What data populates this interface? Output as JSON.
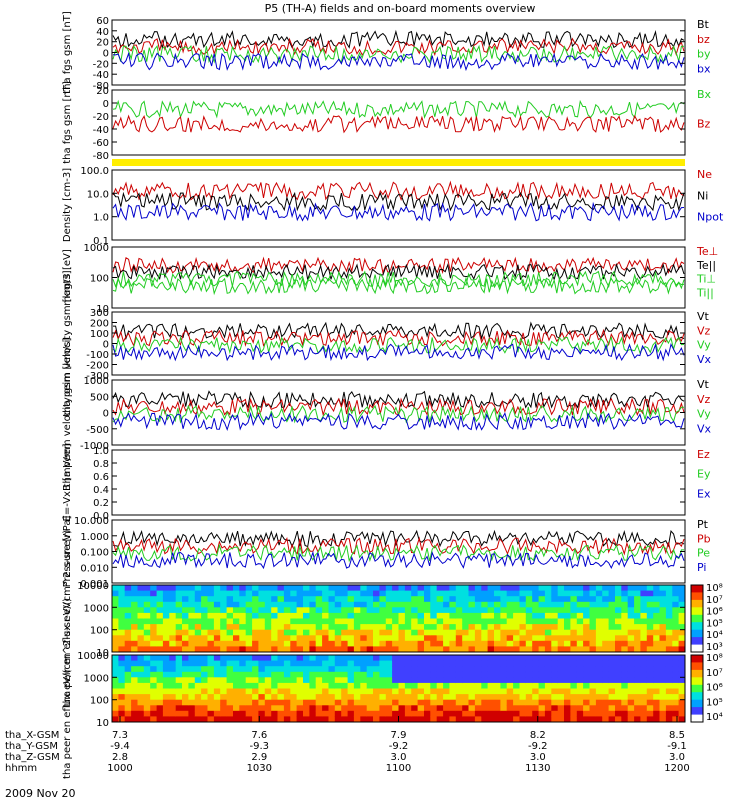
{
  "title": "P5 (TH-A) fields and on-board moments overview",
  "date_label": "2009 Nov 20",
  "colors": {
    "black": "#000000",
    "red": "#cc0000",
    "green": "#22cc22",
    "blue": "#0000cc",
    "yellow": "#ffee00"
  },
  "chart_data": [
    {
      "type": "line",
      "ylabel": "tha fgs gsm [nT]",
      "ylim": [
        -80,
        60
      ],
      "ticks": [
        "60",
        "40",
        "20",
        "0",
        "-20",
        "-40",
        "-80"
      ],
      "legend": [
        {
          "name": "Bt",
          "color": "black"
        },
        {
          "name": "bz",
          "color": "red"
        },
        {
          "name": "by",
          "color": "green"
        },
        {
          "name": "bx",
          "color": "blue"
        }
      ]
    },
    {
      "type": "line",
      "ylabel": "tha fgs gsm [nT]",
      "ylim": [
        -90,
        20
      ],
      "ticks": [
        "20",
        "0",
        "-20",
        "-40",
        "-60",
        "-80"
      ],
      "legend": [
        {
          "name": "Bx",
          "color": "green"
        },
        {
          "name": "Bz",
          "color": "red"
        }
      ]
    },
    {
      "type": "line",
      "ylabel": "Density [cm-3]",
      "scale": "log",
      "ticks": [
        "100.0",
        "10.0",
        "1.0",
        "0.1"
      ],
      "legend": [
        {
          "name": "Ne",
          "color": "red"
        },
        {
          "name": "Ni",
          "color": "black"
        },
        {
          "name": "Npot",
          "color": "blue"
        }
      ]
    },
    {
      "type": "line",
      "ylabel": "magt3 [eV]",
      "scale": "log",
      "ticks": [
        "1000",
        "100",
        "10"
      ],
      "legend": [
        {
          "name": "Te⊥",
          "color": "red"
        },
        {
          "name": "Te||",
          "color": "black"
        },
        {
          "name": "Ti⊥",
          "color": "green"
        },
        {
          "name": "Ti||",
          "color": "green"
        }
      ]
    },
    {
      "type": "line",
      "ylabel": "tha peim velocity gsm [km/s]",
      "ylim": [
        -300,
        300
      ],
      "ticks": [
        "300",
        "200",
        "100",
        "0",
        "-100",
        "-200",
        "-300"
      ],
      "legend": [
        {
          "name": "Vt",
          "color": "black"
        },
        {
          "name": "Vz",
          "color": "red"
        },
        {
          "name": "Vy",
          "color": "green"
        },
        {
          "name": "Vx",
          "color": "blue"
        }
      ]
    },
    {
      "type": "line",
      "ylabel": "tha peem velocity gsm [km/s]",
      "ylim": [
        -1000,
        1000
      ],
      "ticks": [
        "1000",
        "500",
        "0",
        "-500",
        "-1000"
      ],
      "legend": [
        {
          "name": "Vt",
          "color": "black"
        },
        {
          "name": "Vz",
          "color": "red"
        },
        {
          "name": "Vy",
          "color": "green"
        },
        {
          "name": "Vx",
          "color": "blue"
        }
      ]
    },
    {
      "type": "line",
      "ylabel": "E=-VxB [mV/m]",
      "ylim": [
        0,
        1
      ],
      "ticks": [
        "1.0",
        "0.8",
        "0.6",
        "0.4",
        "0.2",
        "0.0"
      ],
      "legend": [
        {
          "name": "Ez",
          "color": "red"
        },
        {
          "name": "Ey",
          "color": "green"
        },
        {
          "name": "Ex",
          "color": "blue"
        }
      ]
    },
    {
      "type": "line",
      "ylabel": "Pressure [nPa]",
      "scale": "log",
      "ticks": [
        "10.000",
        "1.000",
        "0.100",
        "0.010",
        "0.001"
      ],
      "legend": [
        {
          "name": "Pt",
          "color": "black"
        },
        {
          "name": "Pb",
          "color": "red"
        },
        {
          "name": "Pe",
          "color": "green"
        },
        {
          "name": "Pi",
          "color": "blue"
        }
      ]
    },
    {
      "type": "heatmap",
      "ylabel": "tha peir en eflux eV/(cm^2-s-sr-eV)",
      "ticks": [
        "10000",
        "1000",
        "100",
        "10"
      ],
      "colorbar": [
        "10⁸",
        "10⁷",
        "10⁶",
        "10⁵",
        "10⁴",
        "10³"
      ]
    },
    {
      "type": "heatmap",
      "ylabel": "tha peer en eflux eV/(cm^2-s-sr-eV)",
      "ticks": [
        "10000",
        "1000",
        "100",
        "10"
      ],
      "colorbar": [
        "10⁸",
        "10⁷",
        "10⁶",
        "10⁵",
        "10⁴"
      ]
    }
  ],
  "xaxis": {
    "row_labels": [
      "tha_X-GSM",
      "tha_Y-GSM",
      "tha_Z-GSM",
      "hhmm"
    ],
    "ticks": [
      {
        "x": "7.3",
        "y": "-9.4",
        "z": "2.8",
        "t": "1000"
      },
      {
        "x": "7.6",
        "y": "-9.3",
        "z": "2.9",
        "t": "1030"
      },
      {
        "x": "7.9",
        "y": "-9.2",
        "z": "3.0",
        "t": "1100"
      },
      {
        "x": "8.2",
        "y": "-9.2",
        "z": "3.0",
        "t": "1130"
      },
      {
        "x": "8.5",
        "y": "-9.1",
        "z": "3.0",
        "t": "1200"
      }
    ]
  }
}
